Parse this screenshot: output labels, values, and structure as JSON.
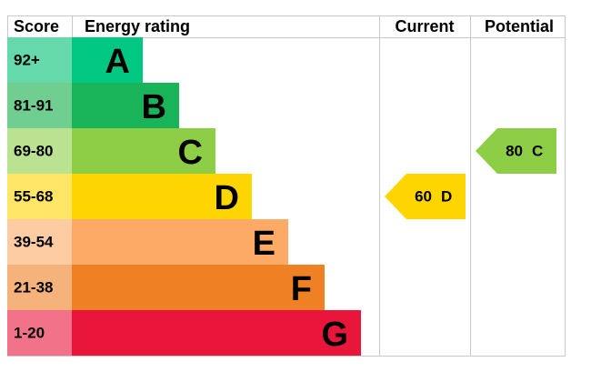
{
  "header": {
    "score": "Score",
    "rating": "Energy rating",
    "current": "Current",
    "potential": "Potential"
  },
  "bands": [
    {
      "score": "92+",
      "letter": "A",
      "color": "#00c781",
      "tint": "#66d9ab"
    },
    {
      "score": "81-91",
      "letter": "B",
      "color": "#19b459",
      "tint": "#70cf90"
    },
    {
      "score": "69-80",
      "letter": "C",
      "color": "#8dce46",
      "tint": "#bbe290"
    },
    {
      "score": "55-68",
      "letter": "D",
      "color": "#ffd500",
      "tint": "#ffe566"
    },
    {
      "score": "39-54",
      "letter": "E",
      "color": "#fcaa65",
      "tint": "#fdcca3"
    },
    {
      "score": "21-38",
      "letter": "F",
      "color": "#ef8023",
      "tint": "#f5b37b"
    },
    {
      "score": "1-20",
      "letter": "G",
      "color": "#e9153b",
      "tint": "#f27389"
    }
  ],
  "current": {
    "value": 60,
    "rating": "D"
  },
  "potential": {
    "value": 80,
    "rating": "C"
  }
}
